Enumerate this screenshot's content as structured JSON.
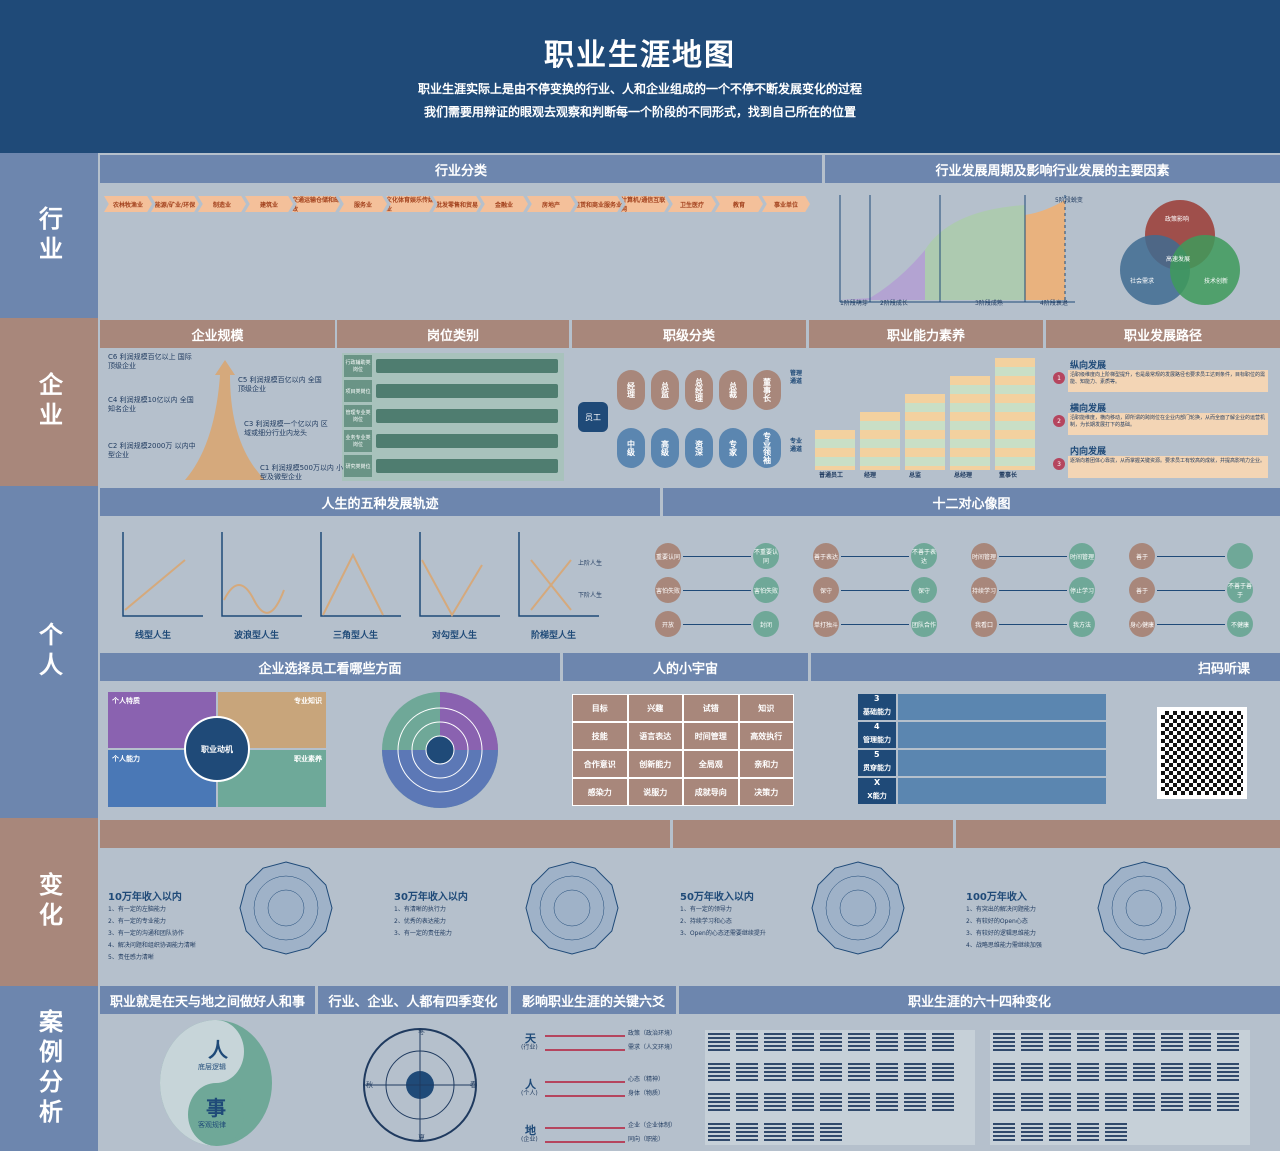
{
  "header": {
    "title": "职业生涯地图",
    "line1": "职业生涯实际上是由不停变换的行业、人和企业组成的一个不停不断发展变化的过程",
    "line2": "我们需要用辩证的眼观去观察和判断每一个阶段的不同形式，找到自己所在的位置"
  },
  "rows": {
    "industry": "行业",
    "enterprise": "企业",
    "person": "个人",
    "change": "变化",
    "case": "案例分析"
  },
  "industry": {
    "left_title": "行业分类",
    "right_title": "行业发展周期及影响行业发展的主要因素",
    "categories": [
      "农林牧渔业",
      "能源/矿业/环保",
      "制造业",
      "建筑业",
      "交通运输仓储和邮政",
      "服务业",
      "文化体育娱乐传媒业",
      "批发零售和贸易",
      "金融业",
      "房地产",
      "租赁和商业服务业",
      "计算机/通信互联网",
      "卫生医疗",
      "教育",
      "事业单位"
    ],
    "stages": [
      "1阶段萌芽",
      "2阶段成长",
      "3阶段成熟",
      "4阶段衰退",
      "5阶段蜕变"
    ],
    "venn": [
      "政策影响",
      "社会需求",
      "技术创新",
      "高速发展"
    ]
  },
  "enterprise": {
    "titles": [
      "企业规模",
      "岗位类别",
      "职级分类",
      "职业能力素养",
      "职业发展路径"
    ],
    "scale": [
      "C6 利润规模百亿以上 国际顶级企业",
      "C5 利润规模百亿以内 全国顶级企业",
      "C4 利润规模10亿以内 全国知名企业",
      "C3 利润规模一个亿以内 区域或细分行业内龙头",
      "C2 利润规模2000万 以内中型企业",
      "C1 利润规模500万以内 小型及微型企业"
    ],
    "posts": [
      "行政辅助类岗位",
      "项目类岗位",
      "管理专业类岗位",
      "业务专业类岗位",
      "研究类岗位"
    ],
    "grade_center": "员工",
    "mgmt": [
      "经理",
      "总监",
      "总经理",
      "总裁",
      "董事长"
    ],
    "mgmt_label": "管理通道",
    "pro": [
      "中级",
      "高级",
      "资深",
      "专家",
      "专业领袖"
    ],
    "pro_label": "专业通道",
    "ability_levels": [
      "普通员工",
      "经理",
      "总监",
      "总经理",
      "董事长"
    ],
    "paths": [
      {
        "t": "纵向发展",
        "d": "沿职级维度向上阶梯型提升，也是最常规的发展路径也要求员工达到条件，目标职位的需能、知能力、素质等。"
      },
      {
        "t": "横向发展",
        "d": "沿职能维度，横向移动，即所谓的跨岗位在企业内部门轮换，从而全面了解企业的运营机制，为长期发展打下的基础。"
      },
      {
        "t": "内向发展",
        "d": "逐渐向着团体心靠拢，从而掌握关键资源。要求员工有较高的成就，并提高影响力企业。"
      }
    ]
  },
  "person": {
    "t1": "人生的五种发展轨迹",
    "t2": "十二对心像图",
    "tracks": [
      "线型人生",
      "波浪型人生",
      "三角型人生",
      "对勾型人生",
      "阶梯型人生"
    ],
    "step_up": "上阶人生",
    "step_down": "下阶人生",
    "pairs": [
      [
        "重要认同",
        "不重要认同"
      ],
      [
        "害怕失败",
        "害怕失败"
      ],
      [
        "开放",
        "封闭"
      ],
      [
        "善于表达",
        "不善于表达"
      ],
      [
        "保守",
        "保守"
      ],
      [
        "单打独斗",
        "团队合作"
      ],
      [
        "时间管理",
        "时间管理"
      ],
      [
        "持续学习",
        "停止学习"
      ],
      [
        "我看口",
        "我方法"
      ],
      [
        "善于",
        ""
      ],
      [
        "善于",
        "不善于善于"
      ],
      [
        "身心健康",
        "不健康"
      ]
    ],
    "t3": "企业选择员工看哪些方面",
    "t4": "人的小宇宙",
    "t5": "扫码听课",
    "quad": [
      "个人特质",
      "专业知识",
      "个人能力",
      "职业素养"
    ],
    "core": "职业动机",
    "cosmos": [
      "目标",
      "兴趣",
      "试错",
      "知识",
      "技能",
      "语言表达",
      "时间管理",
      "高效执行",
      "合作意识",
      "创新能力",
      "全局观",
      "亲和力",
      "感染力",
      "说服力",
      "成就导向",
      "决策力"
    ],
    "abilities": [
      {
        "n": "3",
        "t": "基础能力"
      },
      {
        "n": "4",
        "t": "管理能力"
      },
      {
        "n": "5",
        "t": "贯穿能力"
      },
      {
        "n": "X",
        "t": "X能力"
      }
    ]
  },
  "change": {
    "levels": [
      {
        "t": "10万年收入以内",
        "items": [
          "1、有一定的左脑能力",
          "2、有一定的专业能力",
          "3、有一定的沟通和团队协作",
          "4、解决问题和组织协调能力清晰",
          "5、责任感力清晰"
        ]
      },
      {
        "t": "30万年收入以内",
        "items": [
          "1、有清晰的执行力",
          "2、优秀的表达能力",
          "3、有一定的责任能力"
        ]
      },
      {
        "t": "50万年收入以内",
        "items": [
          "1、有一定的领导力",
          "2、持续学习和心态",
          "3、Open的心态还需要继续提升"
        ]
      },
      {
        "t": "100万年收入",
        "items": [
          "1、有突出的解决问题能力",
          "2、有较好的Open心态",
          "3、有较好的逻辑思维能力",
          "4、战略思维能力需继续加强"
        ]
      }
    ]
  },
  "case": {
    "t1": "职业就是在天与地之间做好人和事",
    "t2": "行业、企业、人都有四季变化",
    "t3": "影响职业生涯的关键六爻",
    "t4": "职业生涯的六十四种变化",
    "ren": "人",
    "ren_sub": "底层逻辑",
    "shi": "事",
    "shi_sub": "客观规律",
    "seasons": [
      "冬",
      "春",
      "夏",
      "秋"
    ],
    "yao": [
      {
        "k": "天",
        "s": "(行业)",
        "a": "政策（政治环境）",
        "b": "需求（人文环境）"
      },
      {
        "k": "人",
        "s": "(个人)",
        "a": "心态（精神）",
        "b": "身体（物质）"
      },
      {
        "k": "地",
        "s": "(企业)",
        "a": "企业（企业体制）",
        "b": "同向（职能）"
      }
    ]
  }
}
